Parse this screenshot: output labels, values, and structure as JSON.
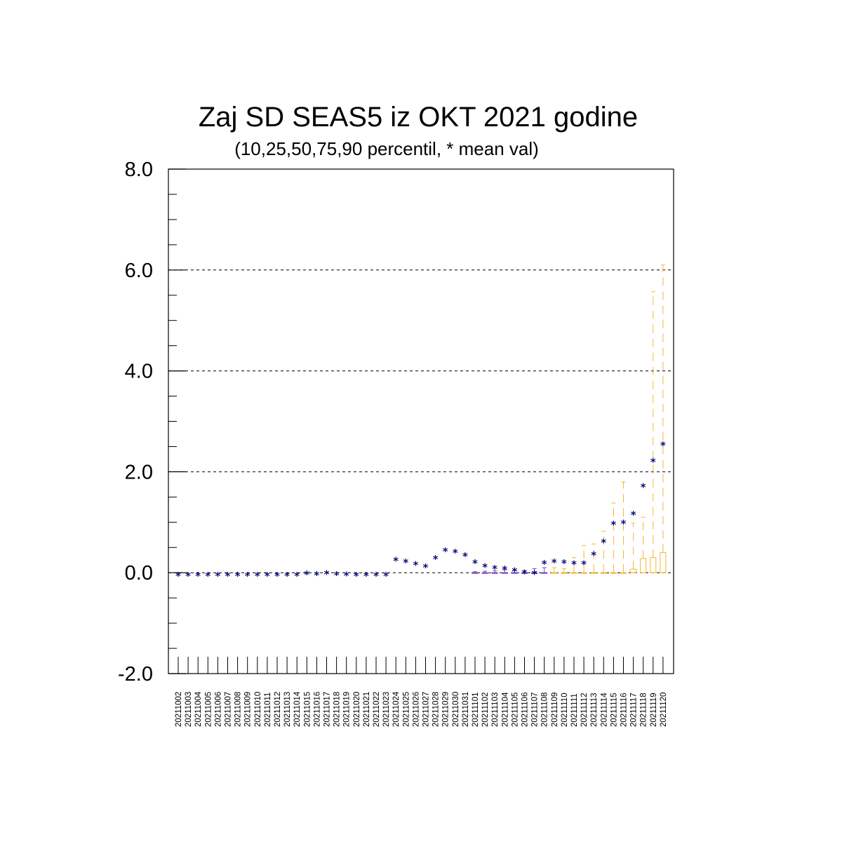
{
  "chart_data": {
    "type": "box",
    "title": "Zaj SD SEAS5 iz OKT 2021 godine",
    "subtitle": "(10,25,50,75,90 percentil, * mean val)",
    "ylim": [
      -2.0,
      8.0
    ],
    "yticks": [
      -2.0,
      0.0,
      2.0,
      4.0,
      6.0,
      8.0
    ],
    "ytick_labels": [
      "-2.0",
      "0.0",
      "2.0",
      "4.0",
      "6.0",
      "8.0"
    ],
    "grid": "horizontal dashed at major y ticks",
    "mean_symbol": "*",
    "categories": [
      "20211002",
      "20211003",
      "20211004",
      "20211005",
      "20211006",
      "20211007",
      "20211008",
      "20211009",
      "20211010",
      "20211011",
      "20211012",
      "20211013",
      "20211014",
      "20211015",
      "20211016",
      "20211017",
      "20211018",
      "20211019",
      "20211020",
      "20211021",
      "20211022",
      "20211023",
      "20211024",
      "20211025",
      "20211026",
      "20211027",
      "20211028",
      "20211029",
      "20211030",
      "20211031",
      "20211101",
      "20211102",
      "20211103",
      "20211104",
      "20211105",
      "20211106",
      "20211107",
      "20211108",
      "20211109",
      "20211110",
      "20211111",
      "20211112",
      "20211113",
      "20211114",
      "20211115",
      "20211116",
      "20211117",
      "20211118",
      "20211119",
      "20211120"
    ],
    "mean": [
      0.0,
      0.0,
      0.0,
      0.0,
      0.0,
      0.0,
      0.0,
      0.0,
      0.0,
      0.0,
      0.0,
      0.0,
      0.0,
      0.03,
      0.02,
      0.04,
      0.02,
      0.01,
      0.0,
      0.0,
      0.0,
      0.0,
      0.3,
      0.27,
      0.22,
      0.17,
      0.34,
      0.49,
      0.46,
      0.39,
      0.25,
      0.18,
      0.14,
      0.13,
      0.09,
      0.05,
      0.04,
      0.24,
      0.27,
      0.25,
      0.23,
      0.23,
      0.41,
      0.66,
      1.02,
      1.04,
      1.21,
      1.76,
      2.26,
      2.59
    ],
    "p10": [
      0,
      0,
      0,
      0,
      0,
      0,
      0,
      0,
      0,
      0,
      0,
      0,
      0,
      0,
      0,
      0,
      0,
      0,
      0,
      0,
      0,
      0,
      0,
      0,
      0,
      0,
      0,
      0,
      0,
      0,
      0,
      0,
      0,
      0,
      0,
      0,
      0,
      0,
      0,
      0,
      0,
      0,
      0,
      0,
      0,
      0,
      0,
      0,
      0,
      0
    ],
    "p25": [
      0,
      0,
      0,
      0,
      0,
      0,
      0,
      0,
      0,
      0,
      0,
      0,
      0,
      0,
      0,
      0,
      0,
      0,
      0,
      0,
      0,
      0,
      0,
      0,
      0,
      0,
      0,
      0,
      0,
      0,
      0,
      0,
      0,
      0,
      0,
      0,
      0,
      0,
      0,
      0,
      0,
      0,
      0,
      0,
      0,
      0,
      0,
      0,
      0,
      0
    ],
    "p50": [
      0,
      0,
      0,
      0,
      0,
      0,
      0,
      0,
      0,
      0,
      0,
      0,
      0,
      0,
      0,
      0,
      0,
      0,
      0,
      0,
      0,
      0,
      0,
      0,
      0,
      0,
      0,
      0,
      0,
      0,
      0,
      0,
      0,
      0,
      0,
      0,
      0,
      0,
      0,
      0,
      0,
      0,
      0,
      0,
      0,
      0,
      0,
      0,
      0,
      0
    ],
    "p75": [
      0,
      0,
      0,
      0,
      0,
      0,
      0,
      0,
      0,
      0,
      0,
      0,
      0,
      0,
      0,
      0,
      0,
      0,
      0,
      0,
      0,
      0,
      0,
      0,
      0,
      0,
      0,
      0,
      0,
      0,
      0,
      0,
      0,
      0,
      0,
      0,
      0,
      0,
      0,
      0,
      0,
      0,
      0,
      0,
      0,
      0,
      0.07,
      0.28,
      0.3,
      0.4
    ],
    "p90": [
      0,
      0,
      0,
      0,
      0,
      0,
      0,
      0,
      0,
      0,
      0,
      0,
      0,
      0,
      0,
      0,
      0,
      0,
      0,
      0,
      0,
      0,
      0,
      0,
      0,
      0,
      0,
      0,
      0,
      0,
      0.02,
      0.03,
      0.04,
      0.06,
      0.05,
      0.04,
      0.08,
      0.1,
      0.1,
      0.08,
      0.3,
      0.54,
      0.57,
      0.82,
      1.38,
      1.8,
      0.98,
      1.1,
      5.57,
      6.1
    ],
    "colors": {
      "mean_marker": "#0a0a7a",
      "box_early": "#7a3fc7",
      "box_late": "#f5b731",
      "grid": "#000000",
      "frame": "#000000"
    }
  }
}
